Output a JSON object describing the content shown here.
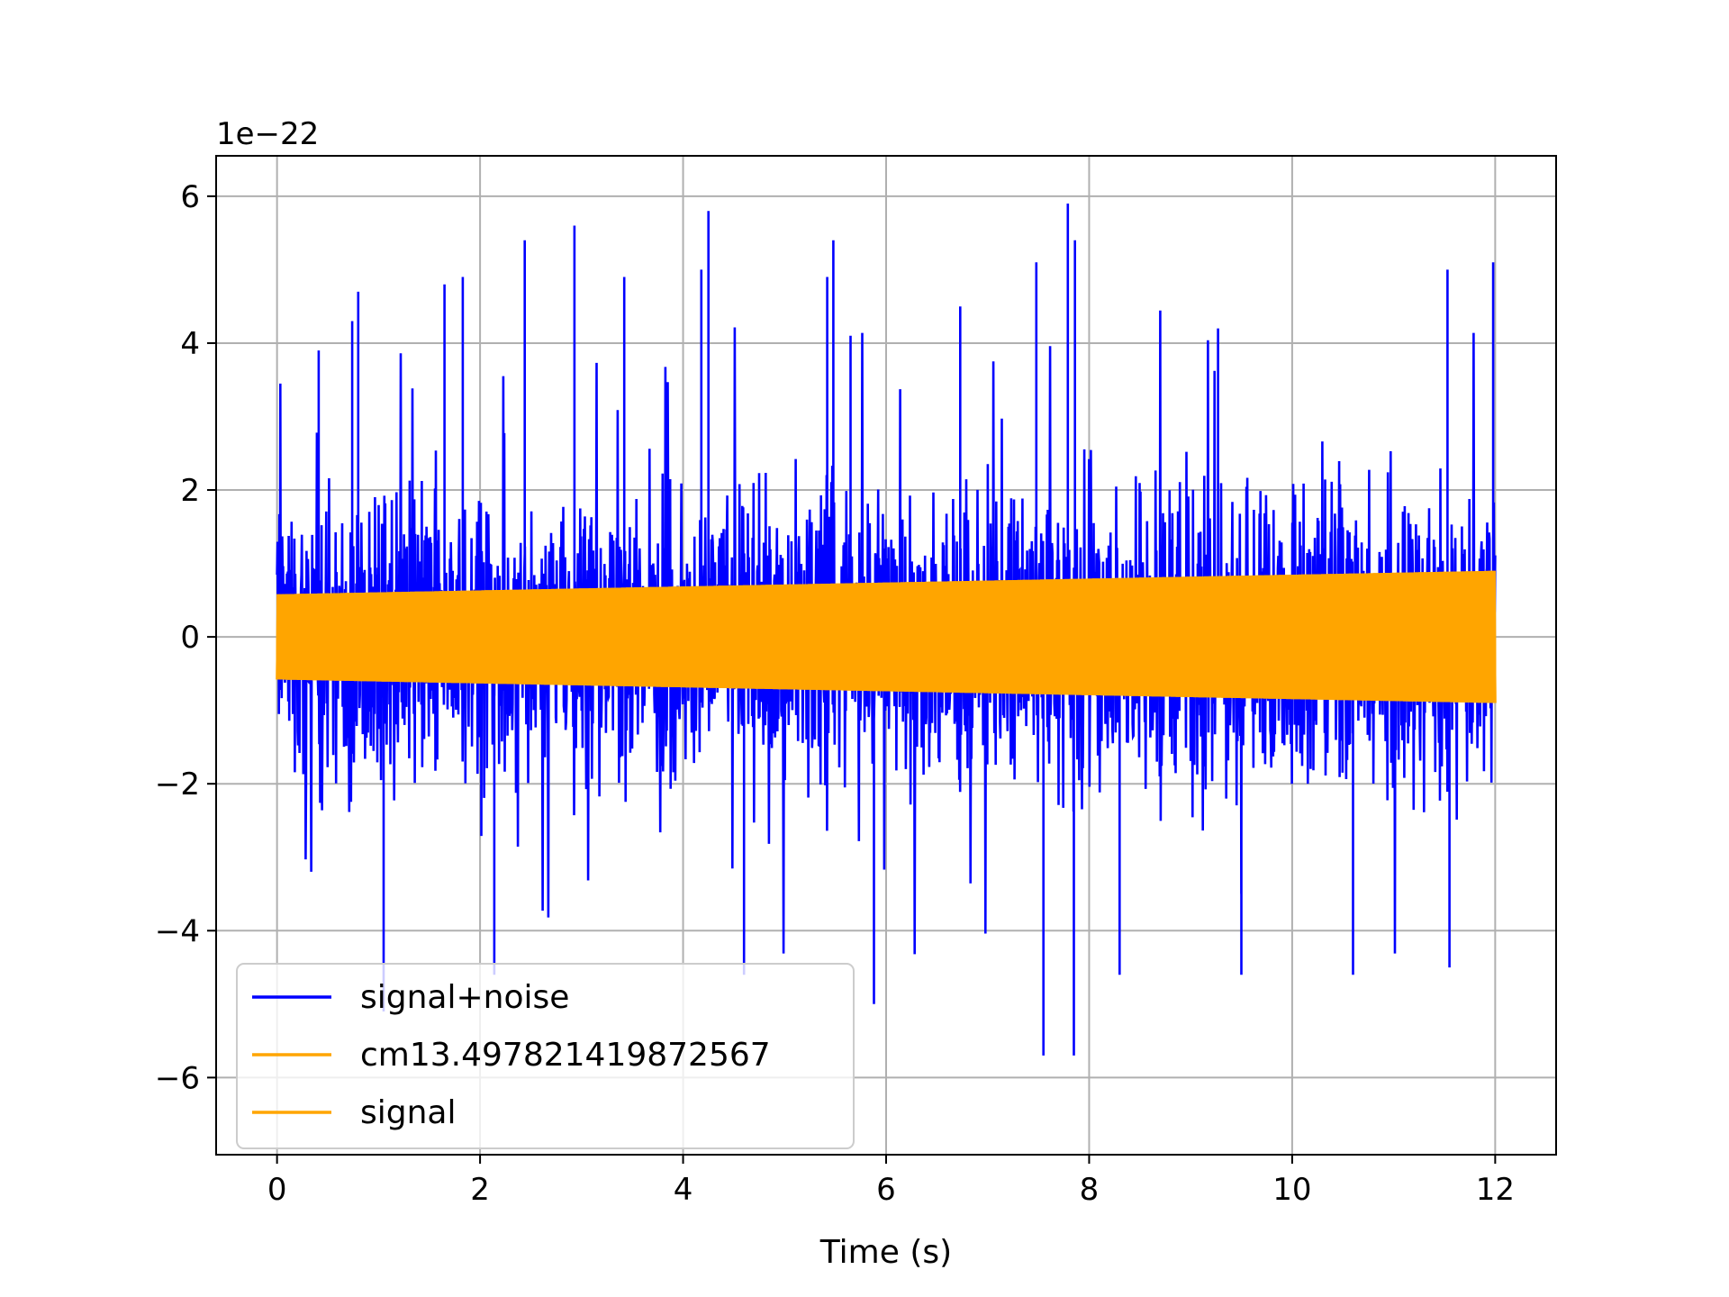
{
  "chart_data": {
    "type": "line",
    "title": "",
    "xlabel": "Time (s)",
    "ylabel": "",
    "y_offset_text": "1e−22",
    "y_scale": 1e-22,
    "xlim": [
      -0.6,
      12.6
    ],
    "ylim": [
      -7.05,
      6.55
    ],
    "x_ticks": [
      0,
      2,
      4,
      6,
      8,
      10,
      12
    ],
    "x_tick_labels": [
      "0",
      "2",
      "4",
      "6",
      "8",
      "10",
      "12"
    ],
    "y_ticks": [
      -6,
      -4,
      -2,
      0,
      2,
      4,
      6
    ],
    "y_tick_labels": [
      "−6",
      "−4",
      "−2",
      "0",
      "2",
      "4",
      "6"
    ],
    "grid": true,
    "legend_position": "lower-left",
    "series": [
      {
        "name": "signal+noise",
        "color": "#0000ff",
        "kind": "noise",
        "x_range": [
          0,
          12
        ],
        "typical_amplitude": 2.0,
        "peak_max": 5.9,
        "peak_min": -5.7,
        "peaks": [
          {
            "x": 0.41,
            "y": 3.9
          },
          {
            "x": 0.74,
            "y": 4.3
          },
          {
            "x": 0.8,
            "y": 4.7
          },
          {
            "x": 1.05,
            "y": -5.1
          },
          {
            "x": 1.65,
            "y": 4.8
          },
          {
            "x": 1.83,
            "y": 4.9
          },
          {
            "x": 2.44,
            "y": 5.4
          },
          {
            "x": 2.93,
            "y": 5.6
          },
          {
            "x": 3.42,
            "y": 4.9
          },
          {
            "x": 4.18,
            "y": 5.0
          },
          {
            "x": 4.25,
            "y": 5.8
          },
          {
            "x": 5.42,
            "y": 4.9
          },
          {
            "x": 5.48,
            "y": 5.4
          },
          {
            "x": 5.65,
            "y": 4.1
          },
          {
            "x": 6.73,
            "y": 4.5
          },
          {
            "x": 7.48,
            "y": 5.1
          },
          {
            "x": 7.55,
            "y": -5.7
          },
          {
            "x": 7.79,
            "y": 5.9
          },
          {
            "x": 7.85,
            "y": -5.7
          },
          {
            "x": 7.86,
            "y": 5.4
          },
          {
            "x": 9.27,
            "y": 4.2
          },
          {
            "x": 11.53,
            "y": 5.0
          },
          {
            "x": 11.55,
            "y": -4.5
          },
          {
            "x": 11.98,
            "y": 5.1
          },
          {
            "x": 5.88,
            "y": -5.0
          },
          {
            "x": 8.3,
            "y": -4.6
          },
          {
            "x": 9.5,
            "y": -4.6
          },
          {
            "x": 10.6,
            "y": -4.6
          },
          {
            "x": 2.14,
            "y": -4.6
          },
          {
            "x": 4.6,
            "y": -4.6
          }
        ]
      },
      {
        "name": "cm13.497821419872567",
        "color": "#ffa500",
        "kind": "chirp",
        "x_range": [
          0,
          12
        ],
        "amplitude_start": 0.58,
        "amplitude_end": 0.9
      },
      {
        "name": "signal",
        "color": "#ffa500",
        "kind": "chirp",
        "x_range": [
          0,
          12
        ],
        "amplitude_start": 0.58,
        "amplitude_end": 0.9
      }
    ]
  }
}
